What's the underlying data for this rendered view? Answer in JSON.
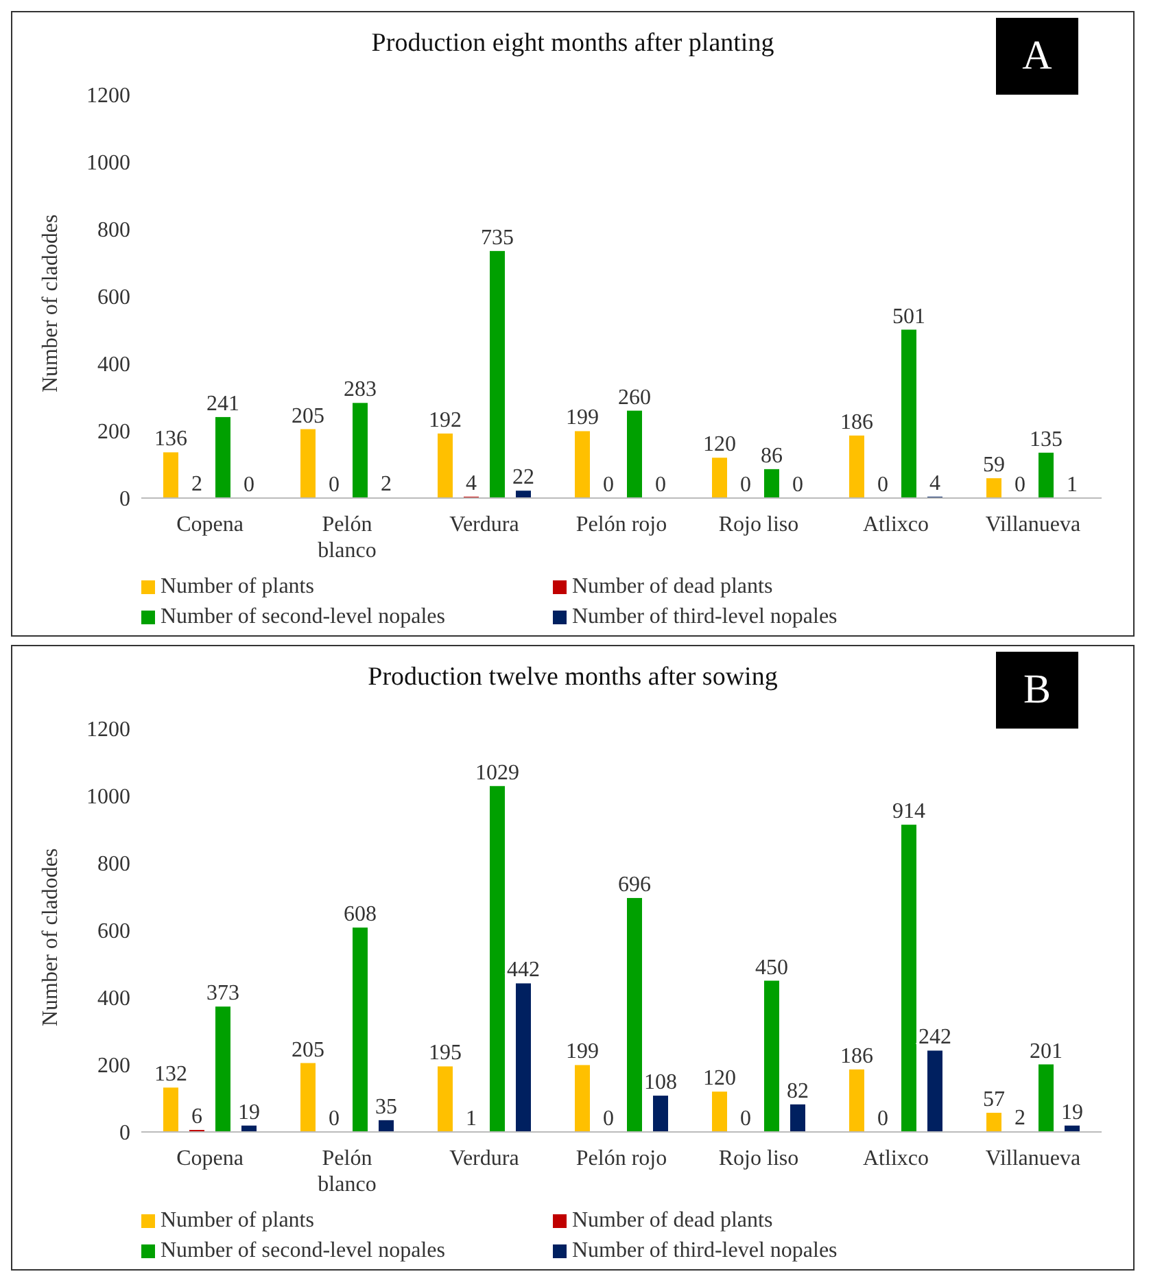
{
  "chart_data": [
    {
      "type": "bar",
      "title": "Production eight months after planting",
      "ylabel": "Number of cladodes",
      "annotations": [
        "A"
      ],
      "categories": [
        "Copena",
        "Pelón blanco",
        "Verdura",
        "Pelón rojo",
        "Rojo liso",
        "Atlixco",
        "Villanueva"
      ],
      "series": [
        {
          "name": "Number of plants",
          "color": "#ffc000",
          "values": [
            136,
            205,
            192,
            199,
            120,
            186,
            59
          ]
        },
        {
          "name": "Number of dead plants",
          "color": "#c00000",
          "values": [
            2,
            0,
            4,
            0,
            0,
            0,
            0
          ]
        },
        {
          "name": "Number of second-level nopales",
          "color": "#00a000",
          "values": [
            241,
            283,
            735,
            260,
            86,
            501,
            135
          ]
        },
        {
          "name": "Number of third-level nopales",
          "color": "#002060",
          "values": [
            0,
            2,
            22,
            0,
            0,
            4,
            1
          ]
        }
      ],
      "ylim": [
        0,
        1200
      ],
      "yticks": [
        0,
        200,
        400,
        600,
        800,
        1000,
        1200
      ],
      "grid": false,
      "legend": "bottom",
      "data_labels": true
    },
    {
      "type": "bar",
      "title": "Production twelve months after sowing",
      "ylabel": "Number of cladodes",
      "annotations": [
        "B"
      ],
      "categories": [
        "Copena",
        "Pelón blanco",
        "Verdura",
        "Pelón rojo",
        "Rojo liso",
        "Atlixco",
        "Villanueva"
      ],
      "series": [
        {
          "name": "Number of plants",
          "color": "#ffc000",
          "values": [
            132,
            205,
            195,
            199,
            120,
            186,
            57
          ]
        },
        {
          "name": "Number of dead plants",
          "color": "#c00000",
          "values": [
            6,
            0,
            1,
            0,
            0,
            0,
            2
          ]
        },
        {
          "name": "Number of second-level nopales",
          "color": "#00a000",
          "values": [
            373,
            608,
            1029,
            696,
            450,
            914,
            201
          ]
        },
        {
          "name": "Number of third-level nopales",
          "color": "#002060",
          "values": [
            19,
            35,
            442,
            108,
            82,
            242,
            19
          ]
        }
      ],
      "ylim": [
        0,
        1200
      ],
      "yticks": [
        0,
        200,
        400,
        600,
        800,
        1000,
        1200
      ],
      "grid": false,
      "legend": "bottom",
      "data_labels": true
    }
  ]
}
